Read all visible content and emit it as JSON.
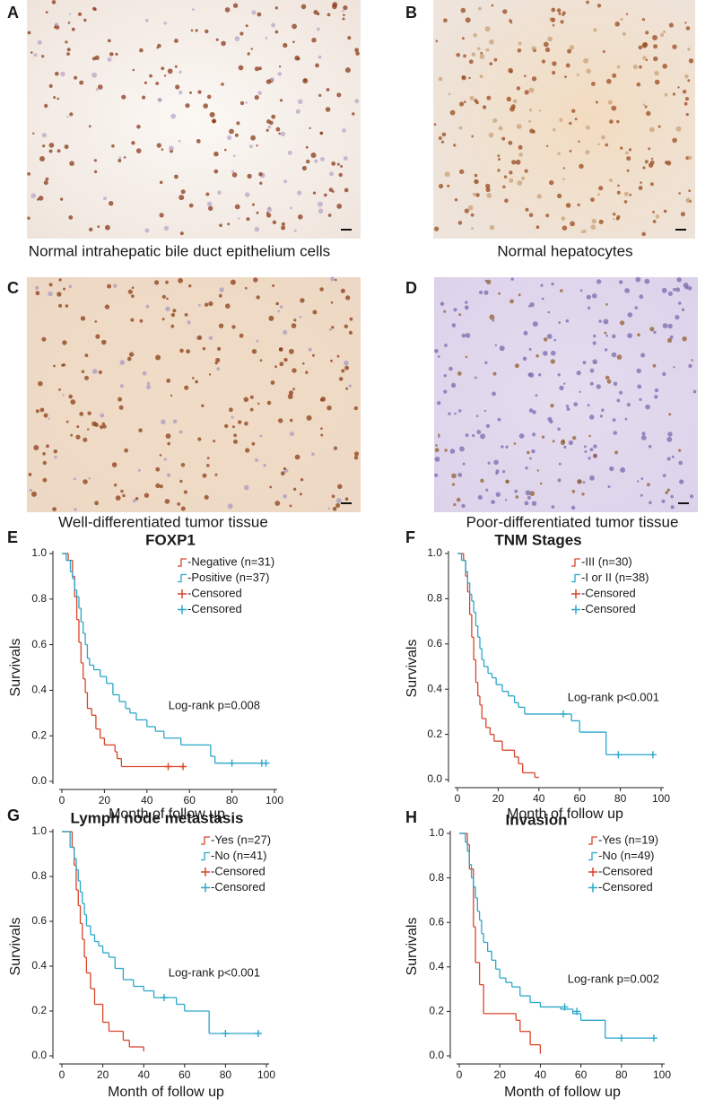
{
  "panels": [
    {
      "label": "A",
      "caption": "Normal intrahepatic bile duct epithelium cells"
    },
    {
      "label": "B",
      "caption": "Normal hepatocytes"
    },
    {
      "label": "C",
      "caption": "Well-differentiated tumor tissue"
    },
    {
      "label": "D",
      "caption": "Poor-differentiated tumor tissue"
    }
  ],
  "chart_data": [
    {
      "type": "line",
      "label": "E",
      "title": "FOXP1",
      "xlabel": "Month of follow up",
      "ylabel": "Survivals",
      "annotation": "Log-rank p=0.008",
      "xlim": [
        0,
        100
      ],
      "xticks": [
        0,
        20,
        40,
        60,
        80,
        100
      ],
      "ylim": [
        0,
        1
      ],
      "yticks": [
        {
          "value": 0,
          "label": "0.0"
        },
        {
          "value": 0.2,
          "label": "0.2"
        },
        {
          "value": 0.4,
          "label": "0.4"
        },
        {
          "value": 0.6,
          "label": "0.6"
        },
        {
          "value": 0.8,
          "label": "0.8"
        },
        {
          "value": 1,
          "label": "1.0"
        }
      ],
      "series": [
        {
          "name": "-Negative (n=31)",
          "color": "#d9442b",
          "style": "step",
          "x": [
            0,
            3,
            5,
            6,
            7,
            8,
            9,
            10,
            11,
            12,
            14,
            16,
            18,
            20,
            25,
            26,
            28,
            57
          ],
          "values": [
            1,
            0.97,
            0.9,
            0.81,
            0.71,
            0.61,
            0.52,
            0.45,
            0.39,
            0.32,
            0.29,
            0.23,
            0.19,
            0.16,
            0.13,
            0.1,
            0.065,
            0.065
          ]
        },
        {
          "name": "-Positive (n=37)",
          "color": "#2aa7c9",
          "style": "step",
          "x": [
            0,
            2,
            4,
            5,
            6,
            7,
            8,
            9,
            10,
            11,
            12,
            13,
            15,
            18,
            21,
            24,
            27,
            30,
            32,
            35,
            40,
            44,
            48,
            56,
            62,
            70,
            72,
            96
          ],
          "values": [
            1,
            0.97,
            0.92,
            0.89,
            0.84,
            0.81,
            0.76,
            0.7,
            0.65,
            0.6,
            0.54,
            0.51,
            0.49,
            0.46,
            0.43,
            0.38,
            0.35,
            0.32,
            0.3,
            0.27,
            0.24,
            0.22,
            0.19,
            0.16,
            0.16,
            0.11,
            0.08,
            0.08
          ]
        },
        {
          "name": "-Censored",
          "color": "#d9442b",
          "style": "markers",
          "x": [
            50,
            57
          ],
          "values": [
            0.065,
            0.065
          ]
        },
        {
          "name": "-Censored",
          "color": "#2aa7c9",
          "style": "markers",
          "x": [
            80,
            94,
            96
          ],
          "values": [
            0.08,
            0.08,
            0.08
          ]
        }
      ]
    },
    {
      "type": "line",
      "label": "F",
      "title": "TNM Stages",
      "xlabel": "Month of follow up",
      "ylabel": "Survivals",
      "annotation": "Log-rank p<0.001",
      "xlim": [
        0,
        100
      ],
      "xticks": [
        0,
        20,
        40,
        60,
        80,
        100
      ],
      "ylim": [
        0,
        1
      ],
      "yticks": [
        {
          "value": 0,
          "label": "0.0"
        },
        {
          "value": 0.2,
          "label": "0.2"
        },
        {
          "value": 0.4,
          "label": "0.4"
        },
        {
          "value": 0.6,
          "label": "0.6"
        },
        {
          "value": 0.8,
          "label": "0.8"
        },
        {
          "value": 1,
          "label": "1.0"
        }
      ],
      "series": [
        {
          "name": "-III (n=30)",
          "color": "#d9442b",
          "style": "step",
          "x": [
            0,
            3,
            4,
            5,
            6,
            7,
            8,
            9,
            10,
            11,
            12,
            14,
            16,
            18,
            22,
            28,
            30,
            32,
            38,
            40
          ],
          "values": [
            1,
            0.97,
            0.9,
            0.83,
            0.73,
            0.63,
            0.53,
            0.43,
            0.37,
            0.33,
            0.27,
            0.23,
            0.2,
            0.17,
            0.13,
            0.1,
            0.07,
            0.03,
            0.01,
            0.01
          ]
        },
        {
          "name": "-I or II (n=38)",
          "color": "#2aa7c9",
          "style": "step",
          "x": [
            0,
            2,
            4,
            5,
            6,
            7,
            8,
            9,
            10,
            11,
            12,
            13,
            15,
            17,
            19,
            22,
            25,
            28,
            30,
            33,
            56,
            60,
            73,
            96
          ],
          "values": [
            1,
            0.97,
            0.92,
            0.87,
            0.82,
            0.79,
            0.74,
            0.68,
            0.63,
            0.58,
            0.53,
            0.5,
            0.47,
            0.45,
            0.42,
            0.39,
            0.37,
            0.34,
            0.32,
            0.29,
            0.26,
            0.21,
            0.11,
            0.11
          ]
        },
        {
          "name": "-Censored",
          "color": "#d9442b",
          "style": "markers",
          "x": [],
          "values": []
        },
        {
          "name": "-Censored",
          "color": "#2aa7c9",
          "style": "markers",
          "x": [
            52,
            79,
            96
          ],
          "values": [
            0.29,
            0.11,
            0.11
          ]
        }
      ]
    },
    {
      "type": "line",
      "label": "G",
      "title": "Lymph node metastasis",
      "xlabel": "Month of follow up",
      "ylabel": "Survivals",
      "annotation": "Log-rank p<0.001",
      "xlim": [
        0,
        100
      ],
      "xticks": [
        0,
        20,
        40,
        60,
        80,
        100
      ],
      "ylim": [
        0,
        1
      ],
      "yticks": [
        {
          "value": 0,
          "label": "0.0"
        },
        {
          "value": 0.2,
          "label": "0.2"
        },
        {
          "value": 0.4,
          "label": "0.4"
        },
        {
          "value": 0.6,
          "label": "0.6"
        },
        {
          "value": 0.8,
          "label": "0.8"
        },
        {
          "value": 1,
          "label": "1.0"
        }
      ],
      "series": [
        {
          "name": "-Yes (n=27)",
          "color": "#d9442b",
          "style": "step",
          "x": [
            0,
            5,
            6,
            7,
            8,
            9,
            10,
            11,
            12,
            14,
            16,
            20,
            23,
            30,
            33,
            40
          ],
          "values": [
            1,
            0.93,
            0.85,
            0.74,
            0.67,
            0.59,
            0.52,
            0.44,
            0.37,
            0.3,
            0.23,
            0.15,
            0.11,
            0.07,
            0.04,
            0.02
          ]
        },
        {
          "name": "-No (n=41)",
          "color": "#2aa7c9",
          "style": "step",
          "x": [
            0,
            4,
            6,
            7,
            8,
            9,
            10,
            11,
            12,
            14,
            16,
            18,
            20,
            23,
            26,
            30,
            35,
            40,
            45,
            56,
            60,
            72,
            96
          ],
          "values": [
            1,
            0.93,
            0.88,
            0.83,
            0.78,
            0.73,
            0.68,
            0.63,
            0.58,
            0.54,
            0.51,
            0.49,
            0.46,
            0.44,
            0.39,
            0.34,
            0.31,
            0.29,
            0.26,
            0.23,
            0.2,
            0.1,
            0.1
          ]
        },
        {
          "name": "-Censored",
          "color": "#d9442b",
          "style": "markers",
          "x": [],
          "values": []
        },
        {
          "name": "-Censored",
          "color": "#2aa7c9",
          "style": "markers",
          "x": [
            50,
            80,
            96
          ],
          "values": [
            0.26,
            0.1,
            0.1
          ]
        }
      ]
    },
    {
      "type": "line",
      "label": "H",
      "title": "Invasion",
      "xlabel": "Month of follow up",
      "ylabel": "Survivals",
      "annotation": "Log-rank p=0.002",
      "xlim": [
        0,
        100
      ],
      "xticks": [
        0,
        20,
        40,
        60,
        80,
        100
      ],
      "ylim": [
        0,
        1
      ],
      "yticks": [
        {
          "value": 0,
          "label": "0.0"
        },
        {
          "value": 0.2,
          "label": "0.2"
        },
        {
          "value": 0.4,
          "label": "0.4"
        },
        {
          "value": 0.6,
          "label": "0.6"
        },
        {
          "value": 0.8,
          "label": "0.8"
        },
        {
          "value": 1,
          "label": "1.0"
        }
      ],
      "series": [
        {
          "name": "-Yes (n=19)",
          "color": "#d9442b",
          "style": "step",
          "x": [
            0,
            4,
            5,
            7,
            8,
            10,
            12,
            28,
            30,
            35,
            40
          ],
          "values": [
            1,
            0.95,
            0.84,
            0.58,
            0.42,
            0.32,
            0.19,
            0.16,
            0.11,
            0.05,
            0.01
          ]
        },
        {
          "name": "-No (n=49)",
          "color": "#2aa7c9",
          "style": "step",
          "x": [
            0,
            3,
            4,
            5,
            6,
            7,
            8,
            9,
            10,
            11,
            12,
            14,
            16,
            18,
            20,
            23,
            26,
            30,
            35,
            40,
            50,
            56,
            60,
            72,
            96
          ],
          "values": [
            1,
            0.96,
            0.92,
            0.86,
            0.8,
            0.76,
            0.71,
            0.65,
            0.61,
            0.55,
            0.51,
            0.47,
            0.43,
            0.39,
            0.35,
            0.33,
            0.31,
            0.27,
            0.24,
            0.22,
            0.21,
            0.19,
            0.16,
            0.08,
            0.08
          ]
        },
        {
          "name": "-Censored",
          "color": "#d9442b",
          "style": "markers",
          "x": [],
          "values": []
        },
        {
          "name": "-Censored",
          "color": "#2aa7c9",
          "style": "markers",
          "x": [
            52,
            58,
            80,
            96
          ],
          "values": [
            0.22,
            0.2,
            0.08,
            0.08
          ]
        }
      ]
    }
  ]
}
